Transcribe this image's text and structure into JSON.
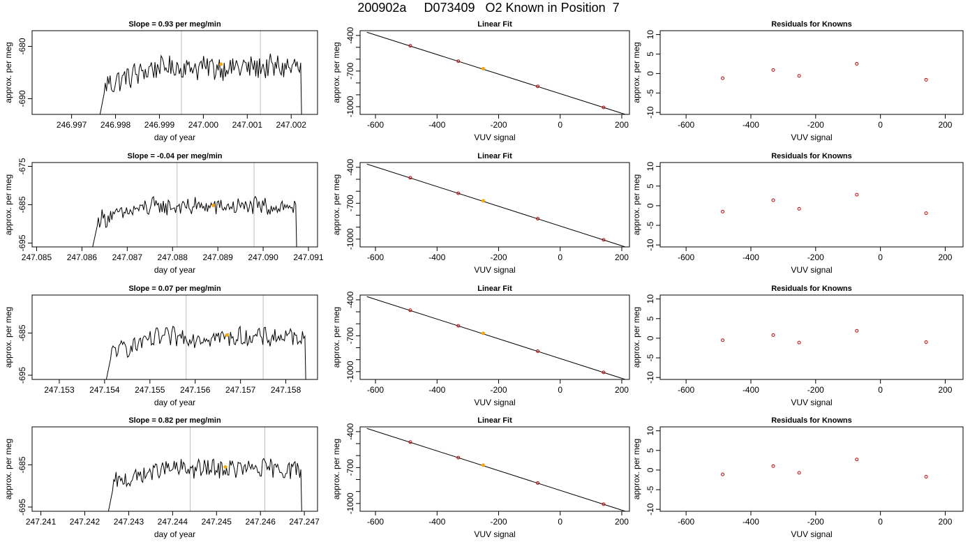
{
  "title": "200902a     D073409   O2 Known in Position  7",
  "colors": {
    "trace": "#000000",
    "marker": "#ffa500",
    "points": "#cc0000",
    "grid_line": "#bebebe",
    "fit": "#000000"
  },
  "chart_data": [
    {
      "type": "line",
      "title": "Slope =  0.93  per meg/min",
      "xlabel": "day of year",
      "ylabel": "approx. per meg",
      "xlim": [
        246.9961,
        247.0026
      ],
      "ylim": [
        -693,
        -677
      ],
      "xticks": [
        246.997,
        246.998,
        246.999,
        247.0,
        247.001,
        247.002
      ],
      "xtick_labels": [
        "246.997",
        "246.998",
        "246.999",
        "247.000",
        "247.001",
        "247.002"
      ],
      "yticks": [
        -680,
        -690
      ],
      "vlines": [
        246.9995,
        247.0013
      ],
      "marker": {
        "x": 247.0004,
        "y": -683.4
      },
      "trace_start": 246.9976,
      "trace_end": 247.0023,
      "trace_base": -684
    },
    {
      "type": "line",
      "title": "Slope =  -0.04  per meg/min",
      "xlabel": "day of year",
      "ylabel": "approx. per meg",
      "xlim": [
        247.0849,
        247.0912
      ],
      "ylim": [
        -696,
        -674
      ],
      "xticks": [
        247.085,
        247.086,
        247.087,
        247.088,
        247.089,
        247.09,
        247.091
      ],
      "xtick_labels": [
        "247.085",
        "247.086",
        "247.087",
        "247.088",
        "247.089",
        "247.090",
        "247.091"
      ],
      "yticks": [
        -675,
        -685,
        -695
      ],
      "vlines": [
        247.0881,
        247.0898
      ],
      "marker": {
        "x": 247.0889,
        "y": -685.2
      },
      "trace_start": 247.0862,
      "trace_end": 247.0908,
      "trace_base": -685.5
    },
    {
      "type": "line",
      "title": "Slope =  0.07  per meg/min",
      "xlabel": "day of year",
      "ylabel": "approx. per meg",
      "xlim": [
        247.1524,
        247.1587
      ],
      "ylim": [
        -696,
        -676
      ],
      "xticks": [
        247.153,
        247.154,
        247.155,
        247.156,
        247.157,
        247.158
      ],
      "xtick_labels": [
        "247.153",
        "247.154",
        "247.155",
        "247.156",
        "247.157",
        "247.158"
      ],
      "yticks": [
        -685,
        -695
      ],
      "vlines": [
        247.1558,
        247.1575
      ],
      "marker": {
        "x": 247.1567,
        "y": -685.5
      },
      "trace_start": 247.154,
      "trace_end": 247.1585,
      "trace_base": -686
    },
    {
      "type": "line",
      "title": "Slope =  0.82  per meg/min",
      "xlabel": "day of year",
      "ylabel": "approx. per meg",
      "xlim": [
        247.2408,
        247.2473
      ],
      "ylim": [
        -696,
        -676
      ],
      "xticks": [
        247.241,
        247.242,
        247.243,
        247.244,
        247.245,
        247.246,
        247.247
      ],
      "xtick_labels": [
        "247.241",
        "247.242",
        "247.243",
        "247.244",
        "247.245",
        "247.246",
        "247.247"
      ],
      "yticks": [
        -685,
        -695
      ],
      "vlines": [
        247.2444,
        247.2461
      ],
      "marker": {
        "x": 247.2452,
        "y": -685.5
      },
      "trace_start": 247.2425,
      "trace_end": 247.247,
      "trace_base": -686
    },
    {
      "type": "scatter",
      "title": "Linear Fit",
      "xlabel": "VUV signal",
      "ylabel": "approx. per meg",
      "xlim": [
        -650,
        225
      ],
      "ylim": [
        -1065,
        -360
      ],
      "xticks": [
        -600,
        -400,
        -200,
        0,
        200
      ],
      "yticks": [
        -400,
        -700,
        -1000
      ],
      "fit_line": {
        "x": [
          -628,
          220
        ],
        "y": [
          -373,
          -1072
        ]
      },
      "points": [
        {
          "x": -487,
          "y": -487
        },
        {
          "x": -331,
          "y": -617
        },
        {
          "x": -73,
          "y": -829
        },
        {
          "x": 141,
          "y": -1006
        }
      ],
      "marker": {
        "x": -250,
        "y": -680
      }
    },
    {
      "type": "scatter",
      "title": "Residuals for Knowns",
      "xlabel": "VUV signal",
      "ylabel": "approx. per meg",
      "xlim": [
        -680,
        255
      ],
      "ylim": [
        -10.5,
        11
      ],
      "xticks": [
        -600,
        -400,
        -200,
        0,
        200
      ],
      "yticks": [
        10,
        5,
        0,
        -5,
        -10
      ],
      "series": [
        {
          "x": [
            -487,
            -331,
            -251,
            -73,
            141
          ],
          "y": [
            -1.2,
            0.9,
            -0.6,
            2.5,
            -1.6
          ]
        },
        {
          "x": [
            -487,
            -331,
            -251,
            -73,
            141
          ],
          "y": [
            -1.5,
            1.4,
            -0.8,
            2.8,
            -1.9
          ]
        },
        {
          "x": [
            -487,
            -331,
            -251,
            -73,
            141
          ],
          "y": [
            -0.5,
            0.8,
            -1.1,
            1.9,
            -1.0
          ]
        },
        {
          "x": [
            -487,
            -331,
            -251,
            -73,
            141
          ],
          "y": [
            -1.1,
            1.0,
            -0.7,
            2.7,
            -1.7
          ]
        }
      ]
    }
  ]
}
